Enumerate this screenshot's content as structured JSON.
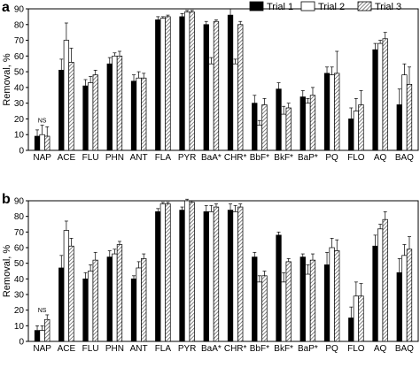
{
  "legend": {
    "position": "top-right",
    "items": [
      {
        "label": "Trial 1",
        "pattern": "solid-black"
      },
      {
        "label": "Trial 2",
        "pattern": "white"
      },
      {
        "label": "Trial 3",
        "pattern": "hatched"
      }
    ]
  },
  "colors": {
    "trial1": "#000000",
    "trial2": "#ffffff",
    "trial3_hatch": "#444444",
    "axis": "#000000"
  },
  "chart_data": [
    {
      "panel": "a",
      "type": "bar",
      "ylabel": "Removal, %",
      "ylim": [
        0,
        90
      ],
      "yticks": [
        0,
        10,
        20,
        30,
        40,
        50,
        60,
        70,
        80,
        90
      ],
      "categories": [
        "NAP",
        "ACE",
        "FLU",
        "PHN",
        "ANT",
        "FLA",
        "PYR",
        "BaA*",
        "CHR*",
        "BbF*",
        "BkF*",
        "BaP*",
        "PQ",
        "FLO",
        "AQ",
        "BAQ"
      ],
      "series": [
        {
          "name": "Trial 1",
          "values": [
            9,
            51,
            41,
            55,
            44,
            83,
            85,
            80,
            86,
            30,
            39,
            34,
            49,
            20,
            64,
            29
          ],
          "errors": [
            4,
            7,
            4,
            4,
            4,
            2,
            2,
            2,
            4,
            5,
            4,
            4,
            4,
            7,
            4,
            10
          ]
        },
        {
          "name": "Trial 2",
          "values": [
            10,
            70,
            43,
            60,
            46,
            84,
            88,
            55,
            55,
            16,
            23,
            30,
            48,
            25,
            68,
            48
          ],
          "errors": [
            6,
            11,
            4,
            2,
            4,
            1,
            1,
            4,
            3,
            3,
            5,
            3,
            5,
            8,
            2,
            7
          ]
        },
        {
          "name": "Trial 3",
          "values": [
            9,
            56,
            48,
            60,
            46,
            85,
            88,
            82,
            80,
            29,
            27,
            35,
            49,
            29,
            71,
            42
          ],
          "errors": [
            6,
            9,
            3,
            3,
            3,
            1,
            1,
            1,
            2,
            4,
            3,
            5,
            14,
            9,
            4,
            11
          ]
        }
      ],
      "annotations": [
        {
          "category": "NAP",
          "text": "NS"
        }
      ]
    },
    {
      "panel": "b",
      "type": "bar",
      "ylabel": "Removal, %",
      "ylim": [
        0,
        90
      ],
      "yticks": [
        0,
        10,
        20,
        30,
        40,
        50,
        60,
        70,
        80,
        90
      ],
      "categories": [
        "NAP",
        "ACE",
        "FLU",
        "PHN",
        "ANT",
        "FLA",
        "PYR",
        "BaA*",
        "CHR*",
        "BbF*",
        "BkF*",
        "BaP*",
        "PQ",
        "FLO",
        "AQ",
        "BAQ"
      ],
      "series": [
        {
          "name": "Trial 1",
          "values": [
            7,
            47,
            40,
            54,
            40,
            83,
            84,
            83,
            84,
            54,
            68,
            54,
            49,
            15,
            61,
            44
          ],
          "errors": [
            3,
            8,
            4,
            4,
            2,
            2,
            2,
            4,
            4,
            3,
            2,
            2,
            8,
            7,
            7,
            9
          ]
        },
        {
          "name": "Trial 2",
          "values": [
            7,
            71,
            45,
            56,
            47,
            88,
            90,
            83,
            83,
            38,
            38,
            43,
            60,
            29,
            72,
            55
          ],
          "errors": [
            3,
            6,
            4,
            3,
            4,
            1,
            1,
            4,
            4,
            4,
            6,
            6,
            6,
            9,
            3,
            7
          ]
        },
        {
          "name": "Trial 3",
          "values": [
            14,
            61,
            52,
            62,
            53,
            88,
            89,
            86,
            86,
            42,
            51,
            52,
            58,
            29,
            78,
            59
          ],
          "errors": [
            3,
            5,
            5,
            2,
            3,
            1,
            1,
            2,
            2,
            3,
            2,
            4,
            7,
            8,
            5,
            8
          ]
        }
      ],
      "annotations": [
        {
          "category": "NAP",
          "text": "NS"
        }
      ]
    }
  ]
}
